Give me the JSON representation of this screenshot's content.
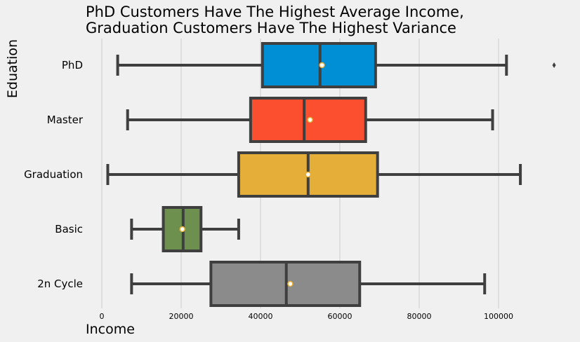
{
  "chart_data": {
    "type": "box",
    "orientation": "horizontal",
    "title_line1": "PhD Customers Have The Highest Average Income,",
    "title_line2": "Graduation Customers Have The Highest Variance",
    "xlabel": "Income",
    "ylabel": "Eduation",
    "xlim": [
      0,
      120000
    ],
    "xticks": [
      0,
      20000,
      40000,
      60000,
      80000,
      100000
    ],
    "xtick_labels": [
      "0",
      "20000",
      "40000",
      "60000",
      "80000",
      "100000"
    ],
    "grid": true,
    "boxes": [
      {
        "category": "PhD",
        "color": "#008fd5",
        "whisker_low": 4000,
        "q1": 40500,
        "median": 55000,
        "q3": 69000,
        "whisker_high": 102000,
        "mean": 55500,
        "outliers": [
          114000
        ]
      },
      {
        "category": "Master",
        "color": "#fc4f30",
        "whisker_low": 6500,
        "q1": 37500,
        "median": 51000,
        "q3": 66500,
        "whisker_high": 98500,
        "mean": 52500,
        "outliers": []
      },
      {
        "category": "Graduation",
        "color": "#e5ae38",
        "whisker_low": 1500,
        "q1": 34500,
        "median": 52000,
        "q3": 69500,
        "whisker_high": 105500,
        "mean": 52000,
        "outliers": []
      },
      {
        "category": "Basic",
        "color": "#6d904f",
        "whisker_low": 7500,
        "q1": 15500,
        "median": 20500,
        "q3": 25000,
        "whisker_high": 34500,
        "mean": 20300,
        "outliers": []
      },
      {
        "category": "2n Cycle",
        "color": "#8b8b8b",
        "whisker_low": 7500,
        "q1": 27500,
        "median": 46500,
        "q3": 65000,
        "whisker_high": 96500,
        "mean": 47500,
        "outliers": []
      }
    ]
  }
}
